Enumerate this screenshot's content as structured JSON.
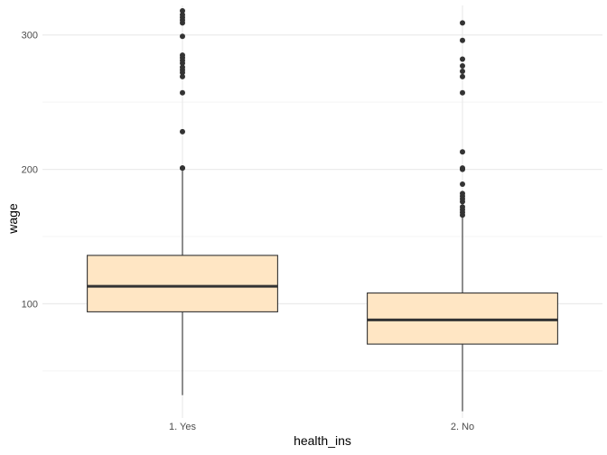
{
  "chart_data": {
    "type": "boxplot",
    "xlabel": "health_ins",
    "ylabel": "wage",
    "categories": [
      "1. Yes",
      "2. No"
    ],
    "ylim": [
      15,
      322
    ],
    "y_ticks": [
      100,
      200,
      300
    ],
    "y_minor_ticks": [
      50,
      150,
      250
    ],
    "grid": true,
    "boxes": [
      {
        "category": "1. Yes",
        "whisker_low": 32,
        "q1": 94,
        "median": 113,
        "q3": 136,
        "whisker_high": 200,
        "outliers": [
          201,
          201,
          228,
          257,
          269,
          272,
          274,
          276,
          279,
          281,
          283,
          285,
          299,
          309,
          311,
          313,
          315,
          318
        ]
      },
      {
        "category": "2. No",
        "whisker_low": 20,
        "q1": 70,
        "median": 88,
        "q3": 108,
        "whisker_high": 165,
        "outliers": [
          166,
          168,
          170,
          172,
          176,
          178,
          180,
          182,
          189,
          200,
          201,
          213,
          257,
          269,
          273,
          277,
          282,
          296,
          309
        ]
      }
    ],
    "colors": {
      "box_fill": "#ffe6c4",
      "box_stroke": "#333333",
      "grid_major": "#ebebeb",
      "grid_minor": "#f4f4f4",
      "point": "#333333"
    }
  }
}
